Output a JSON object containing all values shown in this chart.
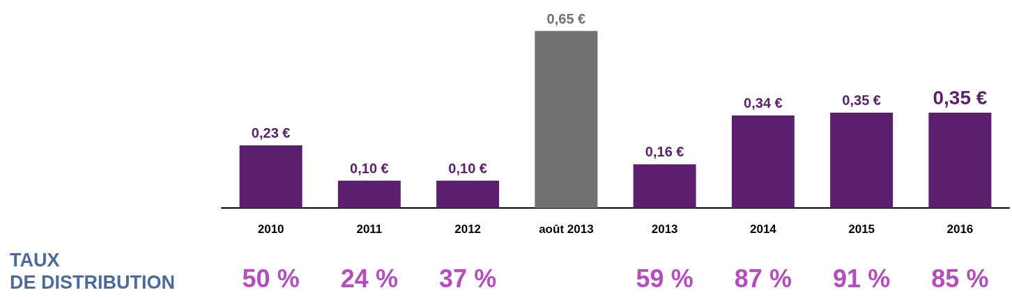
{
  "chart_data": {
    "type": "bar",
    "categories": [
      "2010",
      "2011",
      "2012",
      "août 2013",
      "2013",
      "2014",
      "2015",
      "2016"
    ],
    "values": [
      0.23,
      0.1,
      0.1,
      0.65,
      0.16,
      0.34,
      0.35,
      0.35
    ],
    "colors": [
      "#5b1f6e",
      "#5b1f6e",
      "#5b1f6e",
      "#707170",
      "#5b1f6e",
      "#5b1f6e",
      "#5b1f6e",
      "#5b1f6e"
    ],
    "value_labels": [
      "0,23 €",
      "0,10 €",
      "0,10 €",
      "0,65 €",
      "0,16 €",
      "0,34 €",
      "0,35 €",
      "0,35 €"
    ],
    "grid": false,
    "annotations": [
      "TAUX\nDE DISTRIBUTION",
      "50 %",
      "24 %",
      "37 %",
      "59 %",
      "87 %",
      "91 %",
      "85 %"
    ]
  }
}
